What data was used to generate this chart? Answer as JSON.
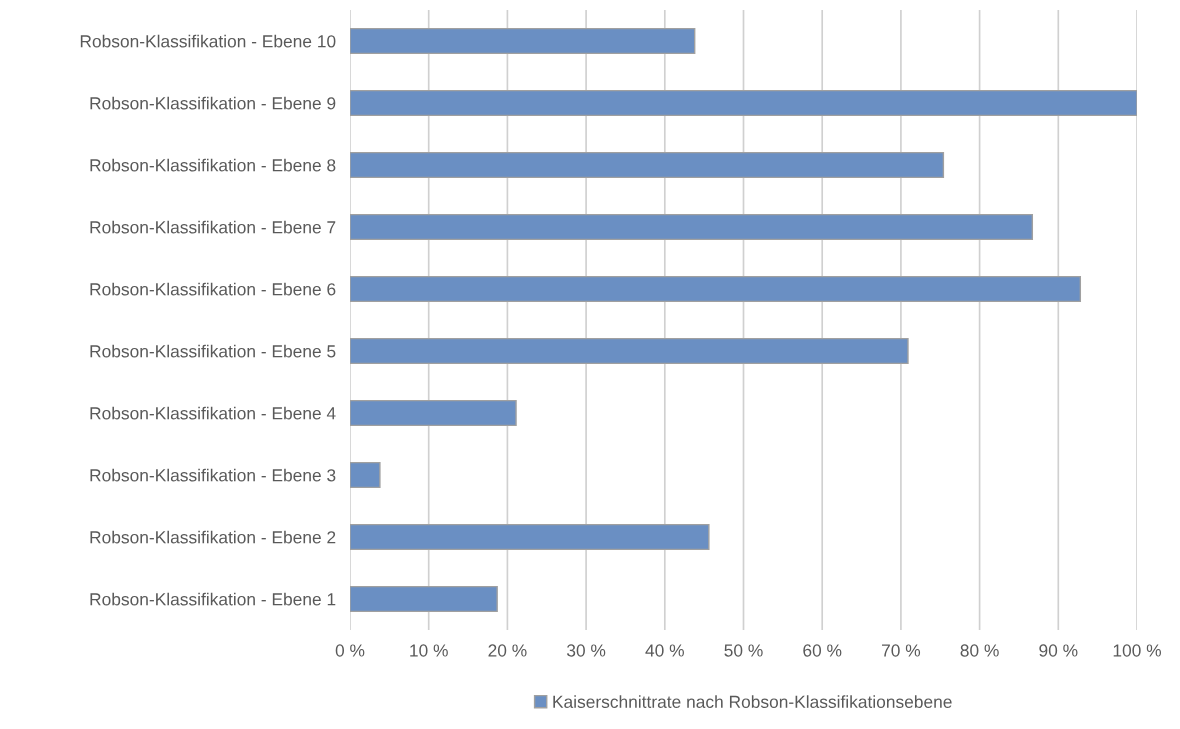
{
  "chart_data": {
    "type": "bar",
    "orientation": "horizontal",
    "categories": [
      "Robson-Klassifikation - Ebene 10",
      "Robson-Klassifikation - Ebene 9",
      "Robson-Klassifikation - Ebene 8",
      "Robson-Klassifikation - Ebene 7",
      "Robson-Klassifikation - Ebene 6",
      "Robson-Klassifikation - Ebene 5",
      "Robson-Klassifikation - Ebene 4",
      "Robson-Klassifikation - Ebene 3",
      "Robson-Klassifikation - Ebene 2",
      "Robson-Klassifikation - Ebene 1"
    ],
    "series": [
      {
        "name": "Kaiserschnittrate nach Robson-Klassifikationsebene",
        "color": "#6a8fc3",
        "values": [
          43.8,
          100,
          75.4,
          86.7,
          92.8,
          70.9,
          21.1,
          3.8,
          45.6,
          18.7
        ]
      }
    ],
    "xlim": [
      0,
      100
    ],
    "xticks": [
      {
        "value": 0,
        "label": "0 %"
      },
      {
        "value": 10,
        "label": "10 %"
      },
      {
        "value": 20,
        "label": "20 %"
      },
      {
        "value": 30,
        "label": "30 %"
      },
      {
        "value": 40,
        "label": "40 %"
      },
      {
        "value": 50,
        "label": "50 %"
      },
      {
        "value": 60,
        "label": "60 %"
      },
      {
        "value": 70,
        "label": "70 %"
      },
      {
        "value": 80,
        "label": "80 %"
      },
      {
        "value": 90,
        "label": "90 %"
      },
      {
        "value": 100,
        "label": "100 %"
      }
    ],
    "grid": "x",
    "legend": "bottom"
  }
}
